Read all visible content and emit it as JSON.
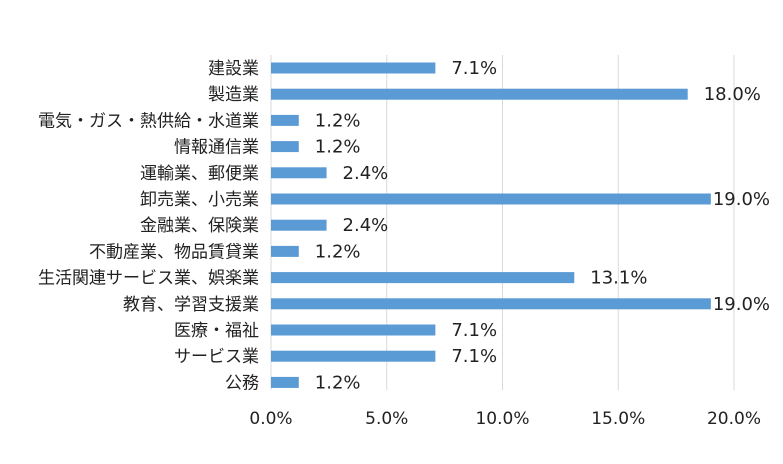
{
  "chart_data": {
    "type": "bar",
    "orientation": "horizontal",
    "categories": [
      "建設業",
      "製造業",
      "電気・ガス・熱供給・水道業",
      "情報通信業",
      "運輸業、郵便業",
      "卸売業、小売業",
      "金融業、保険業",
      "不動産業、物品賃貸業",
      "生活関連サービス業、娯楽業",
      "教育、学習支援業",
      "医療・福祉",
      "サービス業",
      "公務"
    ],
    "values": [
      7.1,
      18.0,
      1.2,
      1.2,
      2.4,
      19.0,
      2.4,
      1.2,
      13.1,
      19.0,
      7.1,
      7.1,
      1.2
    ],
    "value_labels": [
      "7.1%",
      "18.0%",
      "1.2%",
      "1.2%",
      "2.4%",
      "19.0%",
      "2.4%",
      "1.2%",
      "13.1%",
      "19.0%",
      "7.1%",
      "7.1%",
      "1.2%"
    ],
    "x_ticks": [
      "0.0%",
      "5.0%",
      "10.0%",
      "15.0%",
      "20.0%"
    ],
    "xlim": [
      0,
      20
    ],
    "grid": true,
    "bar_color": "#5B9BD5",
    "grid_color": "#D9D9D9"
  }
}
